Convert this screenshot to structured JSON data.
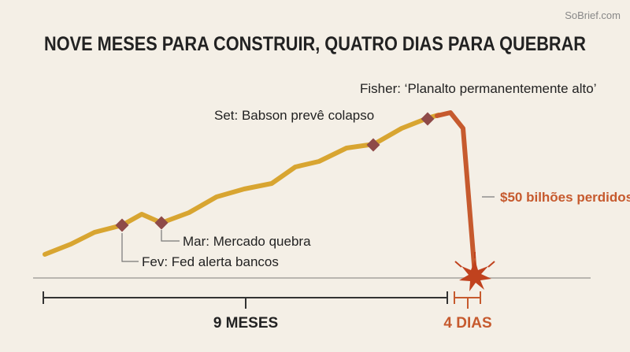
{
  "header": {
    "title": "NOVE MESES PARA CONSTRUIR, QUATRO DIAS PARA QUEBRAR",
    "watermark": "SoBrief.com"
  },
  "events": [
    {
      "label": "Fev: Fed alerta bancos"
    },
    {
      "label": "Mar: Mercado quebra"
    },
    {
      "label": "Set: Babson prevê colapso"
    },
    {
      "label": "Fisher: ‘Planalto permanentemente alto’"
    }
  ],
  "crash_label": "$50 bilhões perdidos",
  "periods": [
    {
      "label": "9 MESES"
    },
    {
      "label": "4 DIAS"
    }
  ]
}
